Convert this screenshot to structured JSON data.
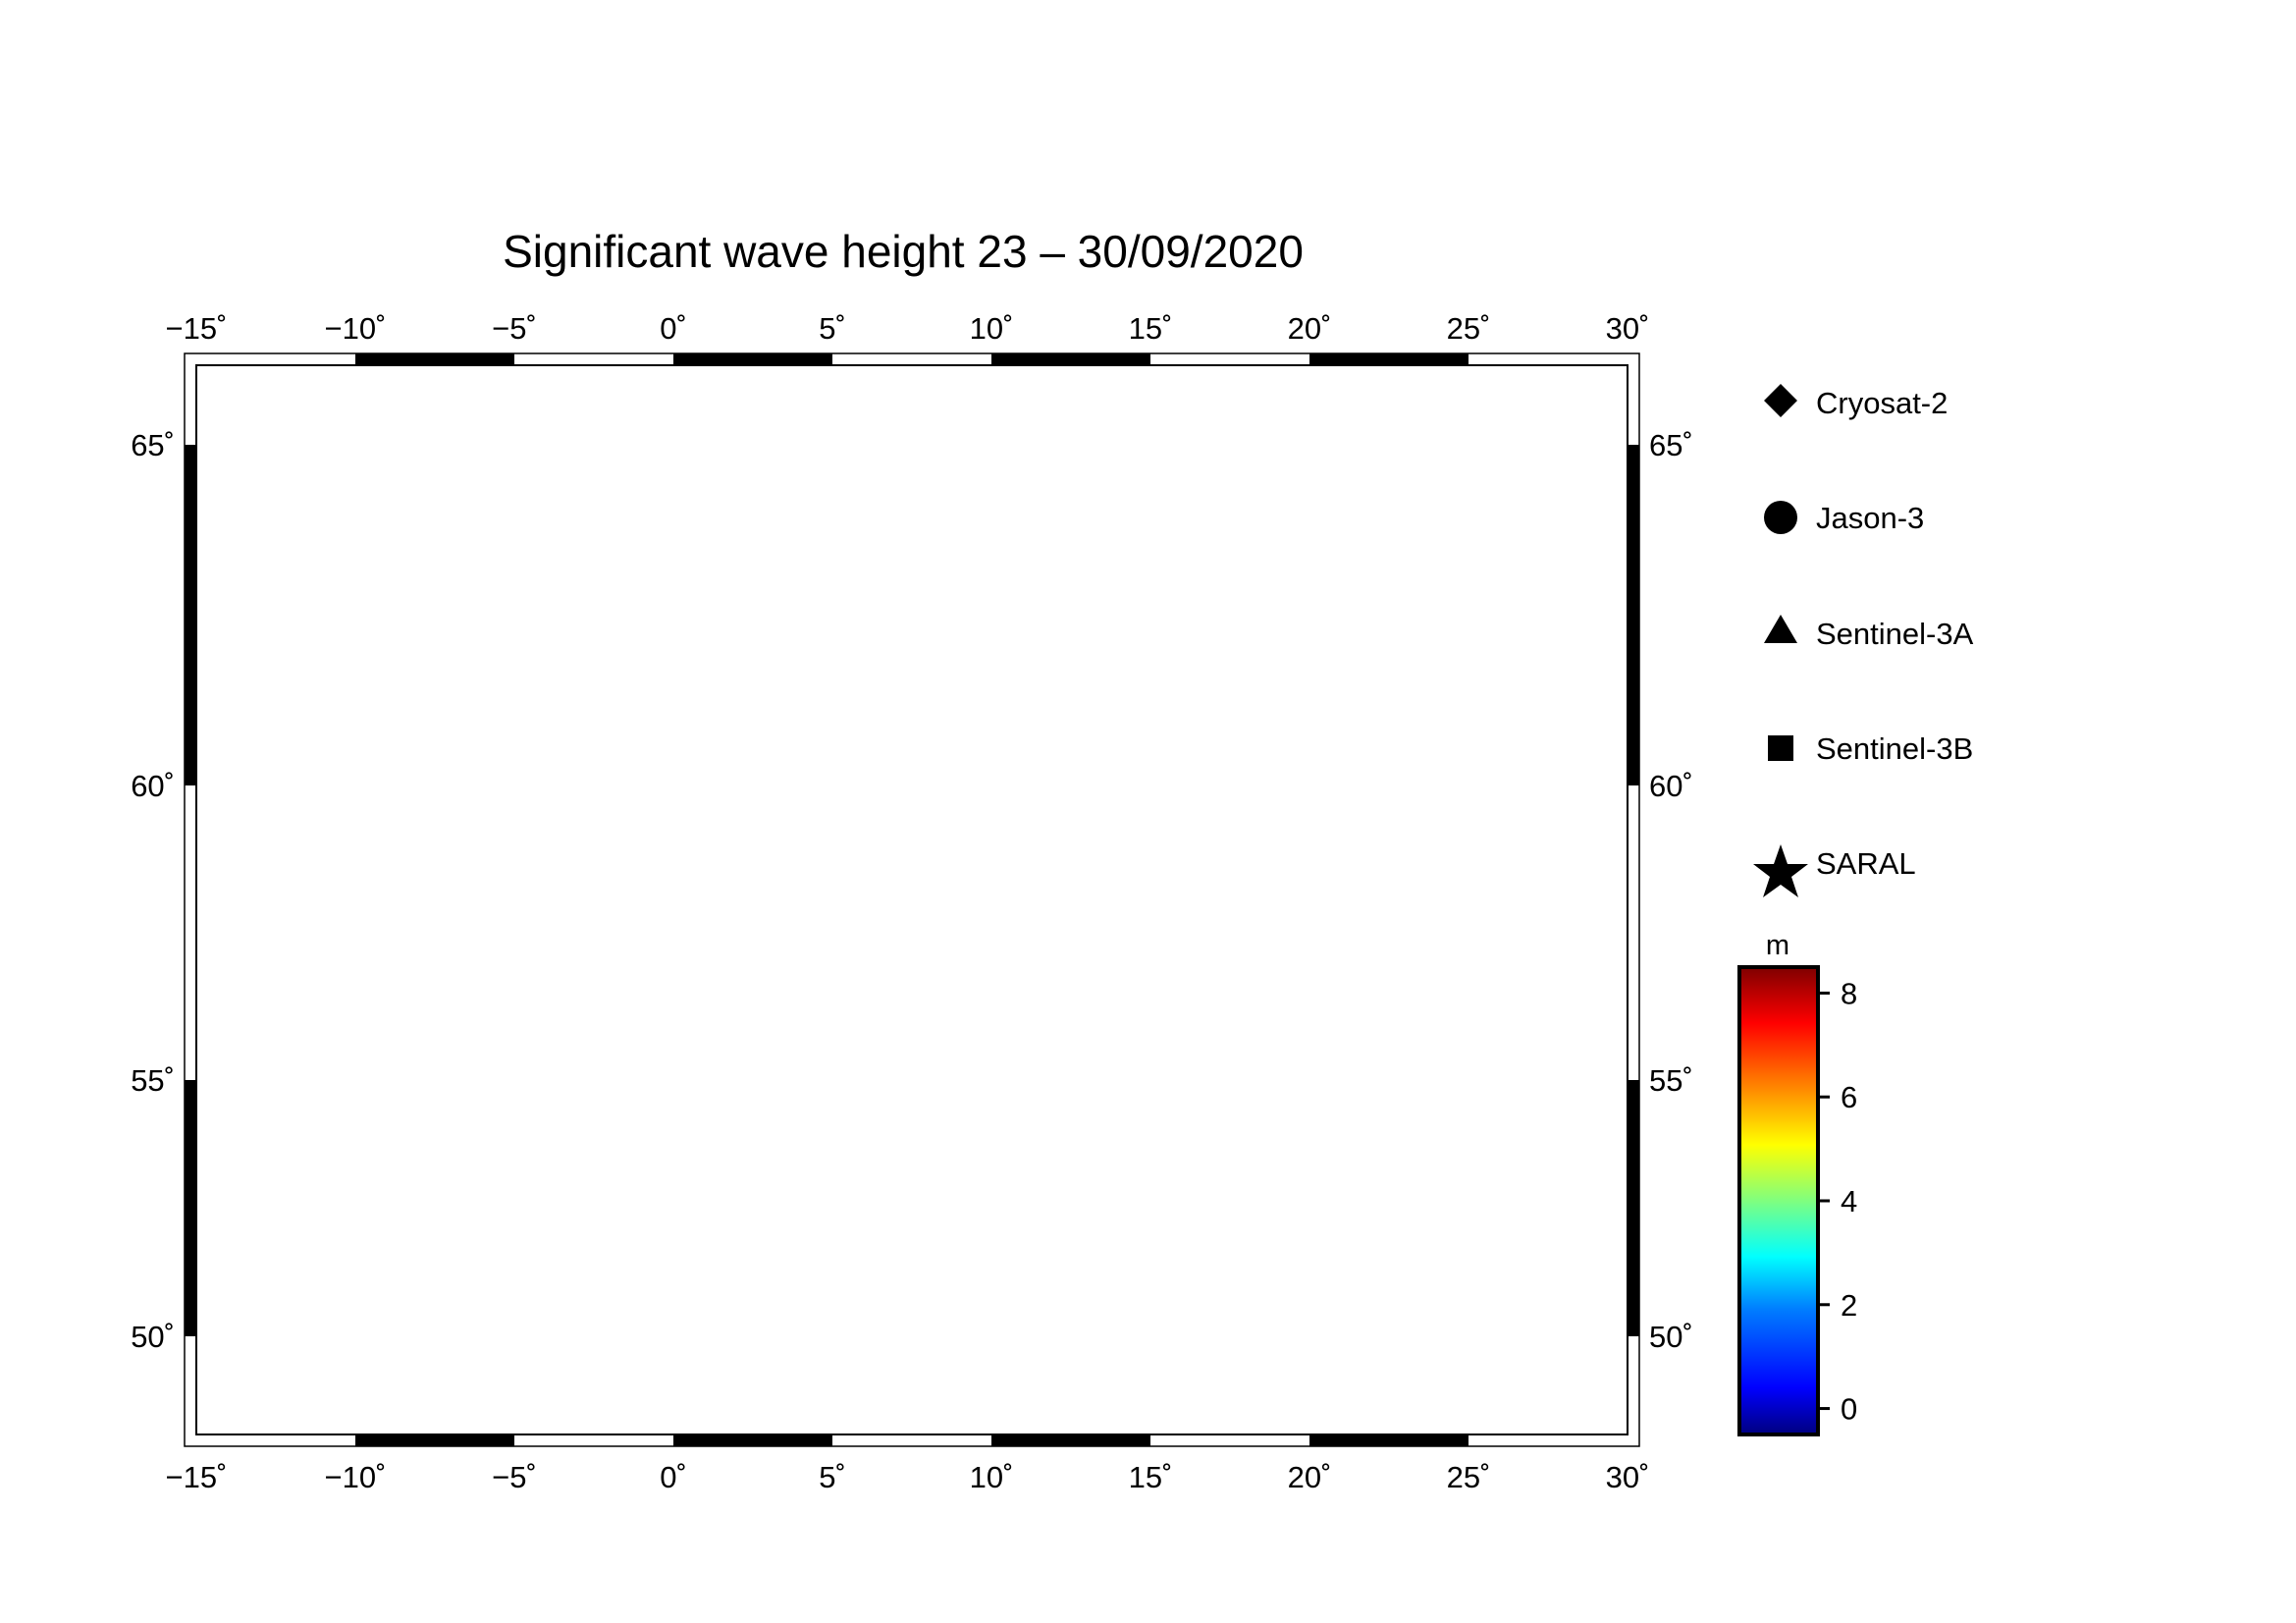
{
  "title": "Significant wave height 23 – 30/09/2020",
  "map": {
    "lon_range": [
      -15,
      30
    ],
    "lat_range": [
      48,
      66
    ],
    "lon_ticks": [
      "−15˚",
      "−10˚",
      "−5˚",
      "0˚",
      "5˚",
      "10˚",
      "15˚",
      "20˚",
      "25˚",
      "30˚"
    ],
    "lat_ticks": [
      "50˚",
      "55˚",
      "60˚",
      "65˚"
    ],
    "land_color": "#bfbfbf",
    "sea_color": "#ffffff"
  },
  "legend": {
    "satellites": [
      {
        "name": "Cryosat-2",
        "icon": "diamond-icon"
      },
      {
        "name": "Jason-3",
        "icon": "circle-icon"
      },
      {
        "name": "Sentinel-3A",
        "icon": "triangle-icon"
      },
      {
        "name": "Sentinel-3B",
        "icon": "square-icon"
      },
      {
        "name": "SARAL",
        "icon": "star-icon"
      }
    ]
  },
  "colorbar": {
    "unit": "m",
    "min": -0.5,
    "max": 8.5,
    "ticks": [
      "0",
      "2",
      "4",
      "6",
      "8"
    ],
    "colors": [
      "#00007f",
      "#0000ff",
      "#007fff",
      "#00ffff",
      "#7fff7f",
      "#ffff00",
      "#ff7f00",
      "#ff0000",
      "#7f0000"
    ]
  }
}
